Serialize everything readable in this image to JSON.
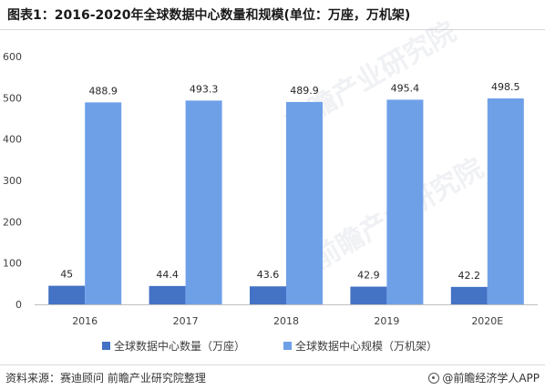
{
  "title": "图表1：2016-2020年全球数据中心数量和规模(单位：万座，万机架)",
  "source": "资料来源：赛迪顾问 前瞻产业研究院整理",
  "brand": "@前瞻经济学人APP",
  "watermark": "前瞻产业研究院",
  "colors": {
    "count": "#4472c4",
    "scale": "#6ea0e8"
  },
  "chart_data": {
    "type": "bar",
    "categories": [
      "2016",
      "2017",
      "2018",
      "2019",
      "2020E"
    ],
    "series": [
      {
        "name": "全球数据中心数量（万座）",
        "values": [
          45,
          44.4,
          43.6,
          42.9,
          42.2
        ]
      },
      {
        "name": "全球数据中心规模（万机架）",
        "values": [
          488.9,
          493.3,
          489.9,
          495.4,
          498.5
        ]
      }
    ],
    "y_ticks": [
      "0",
      "100",
      "200",
      "300",
      "400",
      "500",
      "600"
    ],
    "ylim": [
      0,
      600
    ],
    "grid": false,
    "legend": "bottom"
  }
}
